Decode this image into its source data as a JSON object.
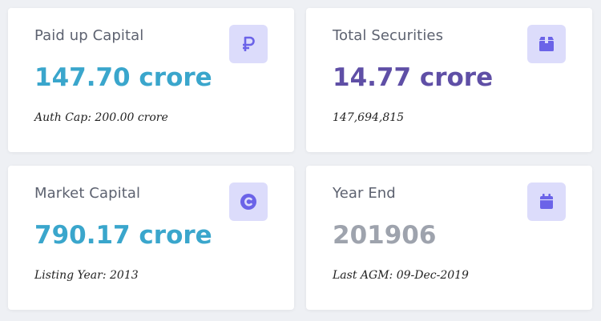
{
  "cards": [
    {
      "title": "Paid up Capital",
      "value": "147.70 crore",
      "sub": "Auth Cap: 200.00 crore",
      "icon": "ruble-icon"
    },
    {
      "title": "Total Securities",
      "value": "14.77 crore",
      "sub": "147,694,815",
      "icon": "box-icon"
    },
    {
      "title": "Market Capital",
      "value": "790.17 crore",
      "sub": "Listing Year: 2013",
      "icon": "copyright-icon"
    },
    {
      "title": "Year End",
      "value": "201906",
      "sub": "Last AGM: 09-Dec-2019",
      "icon": "calendar-icon"
    }
  ],
  "colors": {
    "background": "#eef0f4",
    "card": "#ffffff",
    "icon_bg": "#dcdcfb",
    "icon_fg": "#6b63e8",
    "value_teal": "#3aa6cc",
    "value_purple": "#5f4fa6",
    "value_gray": "#9ea3ad",
    "title": "#5d6270"
  }
}
